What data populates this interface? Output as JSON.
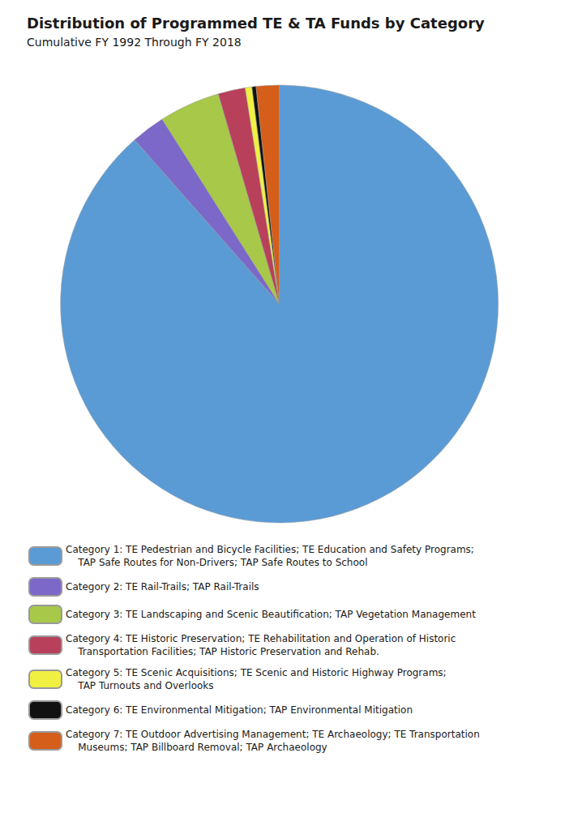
{
  "chart_data": {
    "type": "pie",
    "title": "Distribution of Programmed TE & TA Funds by Category",
    "subtitle": "Cumulative FY 1992 Through FY 2018",
    "categories": [
      "Category 1: TE Pedestrian and Bicycle Facilities; TE Education and Safety Programs;\n    TAP Safe Routes for Non-Drivers; TAP Safe Routes to School",
      "Category 2: TE Rail-Trails; TAP Rail-Trails",
      "Category 3: TE Landscaping and Scenic Beautification; TAP Vegetation Management",
      "Category 4: TE Historic Preservation; TE Rehabilitation and Operation of Historic\n    Transportation Facilities; TAP Historic Preservation and Rehab.",
      "Category 5: TE Scenic Acquisitions; TE Scenic and Historic Highway Programs;\n    TAP Turnouts and Overlooks",
      "Category 6: TE Environmental Mitigation; TAP Environmental Mitigation",
      "Category 7: TE Outdoor Advertising Management; TE Archaeology; TE Transportation\n    Museums; TAP Billboard Removal; TAP Archaeology"
    ],
    "values": [
      88.5,
      2.5,
      4.5,
      2.0,
      0.5,
      0.3,
      1.7
    ],
    "colors": [
      "#5b9bd5",
      "#7b68c8",
      "#a8c84a",
      "#b8405a",
      "#f0f042",
      "#111111",
      "#d45e1a"
    ],
    "legend": "bottom"
  }
}
